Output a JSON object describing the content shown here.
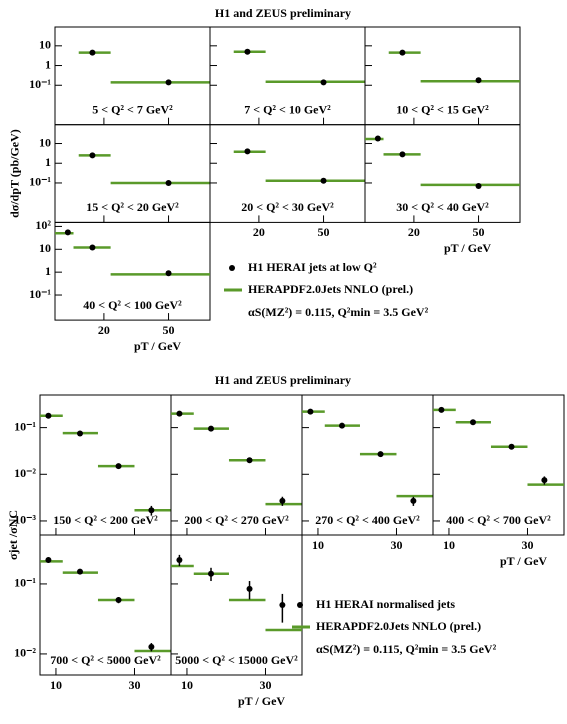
{
  "chart_data": [
    {
      "type": "scatter",
      "title": "H1 and ZEUS preliminary",
      "ylabel": "dσ/dpT (pb/GeV)",
      "xlabel": "pT / GeV",
      "xlog": true,
      "ylog": true,
      "xlim": [
        10,
        90
      ],
      "xticks": [
        20,
        50
      ],
      "point_color": "#000000",
      "theory_color": "#5a9a2a",
      "legend": {
        "points": "H1 HERAI jets at low Q²",
        "theory": "HERAPDF2.0Jets NNLO (prel.)",
        "params": "αS(MZ²) = 0.115, Q²min = 3.5 GeV²"
      },
      "panels": [
        {
          "label": "5 < Q² < 7 GeV²",
          "ylim": [
            0.001,
            90
          ],
          "yticks": [
            10,
            1,
            {
              "value": 0.1,
              "label": "10⁻¹"
            }
          ],
          "x": [
            17,
            50
          ],
          "values": [
            4.5,
            0.14
          ],
          "theory": {
            "bins": [
              14,
              22,
              90
            ],
            "values": [
              4.5,
              0.14
            ]
          }
        },
        {
          "label": "7 < Q² < 10 GeV²",
          "ylim": [
            0.001,
            90
          ],
          "yticks": [
            10,
            1,
            {
              "value": 0.1,
              "label": "10⁻¹"
            }
          ],
          "x": [
            17,
            50
          ],
          "values": [
            5,
            0.14
          ],
          "theory": {
            "bins": [
              14,
              22,
              90
            ],
            "values": [
              5,
              0.15
            ]
          }
        },
        {
          "label": "10 < Q² < 15 GeV²",
          "ylim": [
            0.001,
            90
          ],
          "yticks": [
            10,
            1,
            {
              "value": 0.1,
              "label": "10⁻¹"
            }
          ],
          "x": [
            17,
            50
          ],
          "values": [
            4.5,
            0.18
          ],
          "theory": {
            "bins": [
              14,
              22,
              90
            ],
            "values": [
              4.5,
              0.16
            ]
          }
        },
        {
          "label": "15 < Q² < 20 GeV²",
          "ylim": [
            0.001,
            90
          ],
          "yticks": [
            10,
            1,
            {
              "value": 0.1,
              "label": "10⁻¹"
            }
          ],
          "x": [
            17,
            50
          ],
          "values": [
            2.5,
            0.1
          ],
          "theory": {
            "bins": [
              14,
              22,
              90
            ],
            "values": [
              2.5,
              0.1
            ]
          }
        },
        {
          "label": "20 < Q² < 30 GeV²",
          "ylim": [
            0.001,
            90
          ],
          "yticks": [
            10,
            1,
            {
              "value": 0.1,
              "label": "10⁻¹"
            }
          ],
          "x": [
            17,
            50
          ],
          "values": [
            4,
            0.13
          ],
          "theory": {
            "bins": [
              14,
              22,
              90
            ],
            "values": [
              3.8,
              0.13
            ]
          }
        },
        {
          "label": "30 < Q² < 40 GeV²",
          "ylim": [
            0.001,
            90
          ],
          "yticks": [
            10,
            1,
            {
              "value": 0.1,
              "label": "10⁻¹"
            }
          ],
          "x": [
            12,
            17,
            50
          ],
          "values": [
            18,
            2.8,
            0.07
          ],
          "theory": {
            "bins": [
              10,
              13,
              22,
              90
            ],
            "values": [
              17,
              2.8,
              0.08
            ]
          }
        },
        {
          "label": "40 < Q² < 100 GeV²",
          "ylim": [
            0.008,
            150
          ],
          "yticks": [
            {
              "value": 100,
              "label": "10²"
            },
            10,
            1,
            {
              "value": 0.1,
              "label": "10⁻¹"
            }
          ],
          "x": [
            12,
            17,
            50
          ],
          "values": [
            55,
            12,
            0.9
          ],
          "theory": {
            "bins": [
              10,
              13,
              22,
              90
            ],
            "values": [
              50,
              12,
              0.8
            ]
          }
        }
      ]
    },
    {
      "type": "scatter",
      "title": "H1 and ZEUS preliminary",
      "ylabel": "σjet /σNC",
      "xlabel": "pT / GeV",
      "xlog": true,
      "ylog": true,
      "xlim": [
        8,
        50
      ],
      "xticks": [
        10,
        30
      ],
      "point_color": "#000000",
      "theory_color": "#5a9a2a",
      "legend": {
        "points": "H1 HERAI normalised jets",
        "theory": "HERAPDF2.0Jets NNLO (prel.)",
        "params": "αS(MZ²) = 0.115, Q²min = 3.5 GeV²"
      },
      "panels": [
        {
          "label": "150 < Q² < 200 GeV²",
          "ylim": [
            0.0005,
            0.5
          ],
          "yticks": [
            {
              "value": 0.1,
              "label": "10⁻¹"
            },
            {
              "value": 0.01,
              "label": "10⁻²"
            },
            {
              "value": 0.001,
              "label": "10⁻³"
            }
          ],
          "x": [
            9,
            14,
            24,
            38
          ],
          "values": [
            0.18,
            0.075,
            0.015,
            0.0017
          ],
          "errors": [
            0.01,
            0.004,
            0.001,
            0.0004
          ],
          "theory": {
            "bins": [
              8,
              11,
              18,
              30,
              50
            ],
            "values": [
              0.18,
              0.076,
              0.015,
              0.0017
            ]
          }
        },
        {
          "label": "200 < Q² < 270 GeV²",
          "ylim": [
            0.0005,
            0.5
          ],
          "yticks": [
            {
              "value": 0.1,
              "label": "10⁻¹"
            },
            {
              "value": 0.01,
              "label": "10⁻²"
            },
            {
              "value": 0.001,
              "label": "10⁻³"
            }
          ],
          "x": [
            9,
            14,
            24,
            38
          ],
          "values": [
            0.2,
            0.095,
            0.02,
            0.0027
          ],
          "errors": [
            0.01,
            0.005,
            0.001,
            0.0006
          ],
          "theory": {
            "bins": [
              8,
              11,
              18,
              30,
              50
            ],
            "values": [
              0.2,
              0.095,
              0.02,
              0.0023
            ]
          }
        },
        {
          "label": "270 < Q² < 400 GeV²",
          "ylim": [
            0.0005,
            0.5
          ],
          "yticks": [
            {
              "value": 0.1,
              "label": "10⁻¹"
            },
            {
              "value": 0.01,
              "label": "10⁻²"
            },
            {
              "value": 0.001,
              "label": "10⁻³"
            }
          ],
          "x": [
            9,
            14,
            24,
            38
          ],
          "values": [
            0.22,
            0.11,
            0.027,
            0.0027
          ],
          "errors": [
            0.01,
            0.005,
            0.0015,
            0.0006
          ],
          "theory": {
            "bins": [
              8,
              11,
              18,
              30,
              50
            ],
            "values": [
              0.22,
              0.11,
              0.027,
              0.0034
            ]
          }
        },
        {
          "label": "400 < Q² < 700 GeV²",
          "ylim": [
            0.0005,
            0.5
          ],
          "yticks": [
            {
              "value": 0.1,
              "label": "10⁻¹"
            },
            {
              "value": 0.01,
              "label": "10⁻²"
            },
            {
              "value": 0.001,
              "label": "10⁻³"
            }
          ],
          "x": [
            9,
            14,
            24,
            38
          ],
          "values": [
            0.24,
            0.13,
            0.039,
            0.0075
          ],
          "errors": [
            0.015,
            0.007,
            0.002,
            0.0015
          ],
          "theory": {
            "bins": [
              8,
              11,
              18,
              30,
              50
            ],
            "values": [
              0.24,
              0.13,
              0.039,
              0.006
            ]
          }
        },
        {
          "label": "700 < Q² < 5000 GeV²",
          "ylim": [
            0.005,
            0.5
          ],
          "yticks": [
            {
              "value": 0.1,
              "label": "10⁻¹"
            },
            {
              "value": 0.01,
              "label": "10⁻²"
            }
          ],
          "x": [
            9,
            14,
            24,
            38
          ],
          "values": [
            0.22,
            0.15,
            0.059,
            0.0126
          ],
          "errors": [
            0.02,
            0.01,
            0.006,
            0.0017
          ],
          "theory": {
            "bins": [
              8,
              11,
              18,
              30,
              50
            ],
            "values": [
              0.21,
              0.145,
              0.059,
              0.011
            ]
          }
        },
        {
          "label": "5000 < Q² < 15000 GeV²",
          "ylim": [
            0.005,
            0.5
          ],
          "yticks": [
            {
              "value": 0.1,
              "label": "10⁻¹"
            },
            {
              "value": 0.01,
              "label": "10⁻²"
            }
          ],
          "x": [
            9,
            14,
            24,
            38
          ],
          "values": [
            0.22,
            0.14,
            0.085,
            0.05
          ],
          "errors": [
            0.04,
            0.03,
            0.025,
            0.022
          ],
          "theory": {
            "bins": [
              8,
              11,
              18,
              30,
              50
            ],
            "values": [
              0.18,
              0.14,
              0.059,
              0.022
            ]
          }
        }
      ]
    }
  ]
}
